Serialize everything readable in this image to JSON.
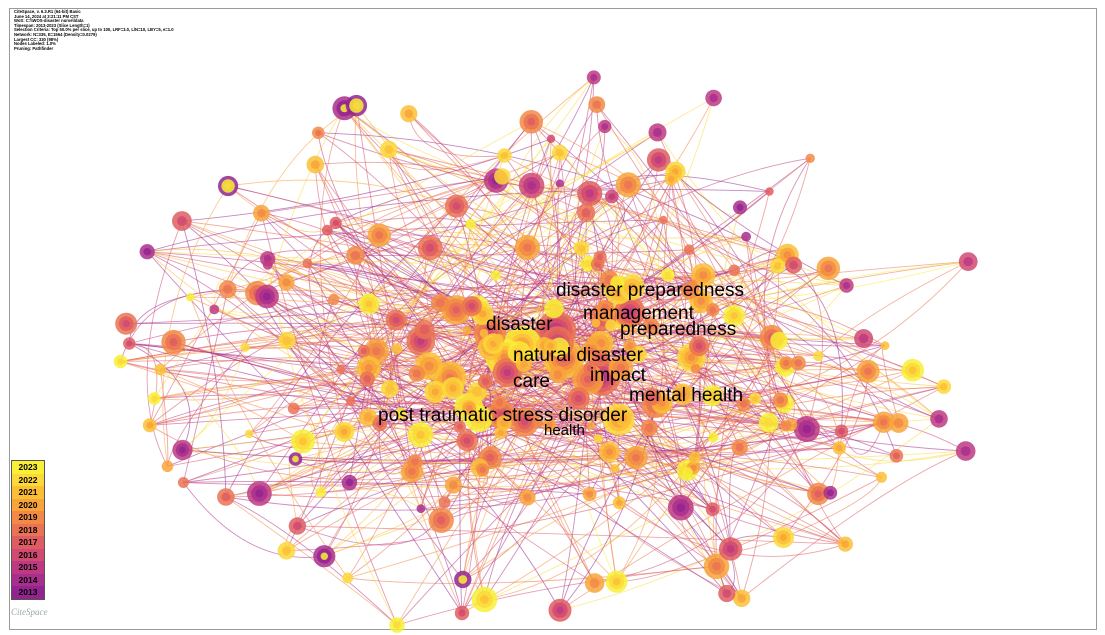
{
  "metadata_lines": [
    "CiteSpace, v. 6.3.R1 (64-bit) Basic",
    "June 14, 2024 at 3:21:11 PM CST",
    "WoS: C:\\\\WOS-disaster nurse\\\\data",
    "Timespan: 2013-2023 (Slice Length=1)",
    "Selection Criteria: Top 50.0% per slice, up to 100, LRF=3.0, L/N=10, LBY=5, e=1.0",
    "Network: N=335, E=1564 (Density=0.0279)",
    "Largest CC: 330 (98%)",
    "Nodes Labeled: 1.0%",
    "Pruning: Pathfinder"
  ],
  "keywords": [
    {
      "label": "disaster preparedness",
      "emphasis": "large"
    },
    {
      "label": "management",
      "emphasis": "large"
    },
    {
      "label": "disaster",
      "emphasis": "large"
    },
    {
      "label": "preparedness",
      "emphasis": "large"
    },
    {
      "label": "natural disaster",
      "emphasis": "large"
    },
    {
      "label": "impact",
      "emphasis": "large"
    },
    {
      "label": "care",
      "emphasis": "large"
    },
    {
      "label": "mental health",
      "emphasis": "large"
    },
    {
      "label": "post traumatic stress disorder",
      "emphasis": "large"
    },
    {
      "label": "health",
      "emphasis": "medium"
    }
  ],
  "legend": {
    "years": [
      "2023",
      "2022",
      "2021",
      "2020",
      "2019",
      "2018",
      "2017",
      "2016",
      "2015",
      "2014",
      "2013"
    ],
    "colors": [
      "#f7f034",
      "#fbd93a",
      "#fbbf36",
      "#f8a43a",
      "#f28a46",
      "#ea7353",
      "#df5d62",
      "#d04a72",
      "#bd3a82",
      "#a92f8e",
      "#93248f"
    ]
  },
  "brand": "CiteSpace"
}
